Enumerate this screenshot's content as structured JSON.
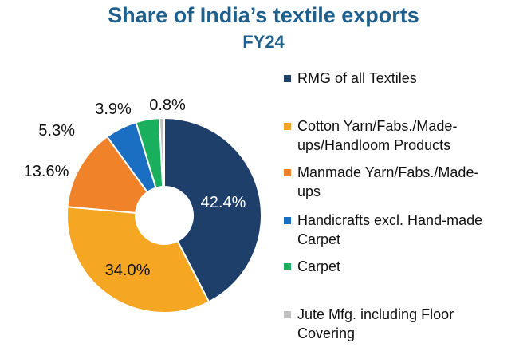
{
  "chart_data": {
    "type": "pie",
    "title": "Share of India’s textile exports",
    "subtitle": "FY24",
    "donut": true,
    "legend_position": "right",
    "slices": [
      {
        "label": "RMG of all Textiles",
        "value": 42.4,
        "display": "42.4%",
        "color": "#1f3f6b"
      },
      {
        "label": "Cotton Yarn/Fabs./Made-ups/Handloom Products",
        "value": 34.0,
        "display": "34.0%",
        "color": "#f5a623"
      },
      {
        "label": "Manmade Yarn/Fabs./Made-ups",
        "value": 13.6,
        "display": "13.6%",
        "color": "#f0822a"
      },
      {
        "label": "Handicrafts excl. Hand-made Carpet",
        "value": 5.3,
        "display": "5.3%",
        "color": "#1a6fc2"
      },
      {
        "label": "Carpet",
        "value": 3.9,
        "display": "3.9%",
        "color": "#1aaf5d"
      },
      {
        "label": "Jute Mfg. including Floor Covering",
        "value": 0.8,
        "display": "0.8%",
        "color": "#c0c0c0"
      }
    ]
  },
  "legend": {
    "items": [
      {
        "lines": [
          "RMG of all Textiles"
        ],
        "color": "#1f3f6b"
      },
      {
        "lines": [
          "Cotton Yarn/Fabs./Made-",
          "ups/Handloom Products"
        ],
        "color": "#f5a623"
      },
      {
        "lines": [
          "Manmade Yarn/Fabs./Made-",
          "ups"
        ],
        "color": "#f0822a"
      },
      {
        "lines": [
          "Handicrafts excl. Hand-made",
          "Carpet"
        ],
        "color": "#1a6fc2"
      },
      {
        "lines": [
          "Carpet"
        ],
        "color": "#1aaf5d"
      },
      {
        "lines": [
          "Jute Mfg. including Floor",
          "Covering"
        ],
        "color": "#c0c0c0"
      }
    ]
  }
}
